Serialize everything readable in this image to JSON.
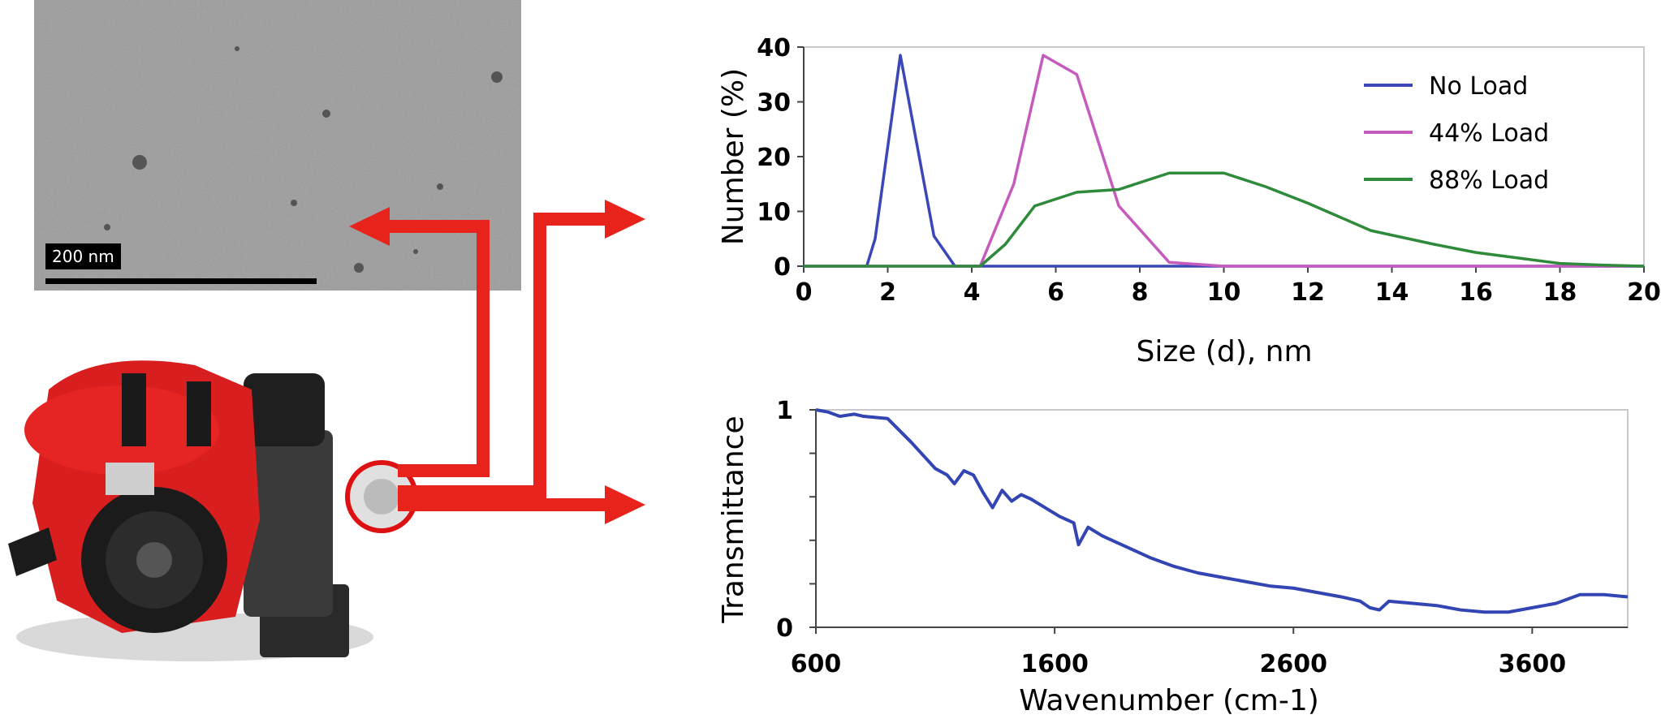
{
  "tem_image": {
    "scale_label": "200 nm"
  },
  "chart_data": [
    {
      "type": "line",
      "xlabel": "Size (d), nm",
      "ylabel": "Number (%)",
      "xlim": [
        0,
        20
      ],
      "ylim": [
        0,
        40
      ],
      "xticks": [
        "0",
        "2",
        "4",
        "6",
        "8",
        "10",
        "12",
        "14",
        "16",
        "18",
        "20"
      ],
      "yticks": [
        "0",
        "10",
        "20",
        "30",
        "40"
      ],
      "grid": false,
      "legend_position": "top-right",
      "series": [
        {
          "name": "No Load",
          "color": "#3b47b8",
          "x": [
            0,
            1.5,
            1.7,
            2.3,
            3.1,
            3.6,
            20
          ],
          "y": [
            0,
            0,
            5,
            38.5,
            5.5,
            0,
            0
          ]
        },
        {
          "name": "44% Load",
          "color": "#c45bbd",
          "x": [
            0,
            4.2,
            5.0,
            5.7,
            6.5,
            7.5,
            8.7,
            10,
            20
          ],
          "y": [
            0,
            0,
            15,
            38.5,
            35,
            11,
            0.7,
            0,
            0
          ]
        },
        {
          "name": "88% Load",
          "color": "#2f8a3c",
          "x": [
            0,
            4.2,
            4.8,
            5.5,
            6.5,
            7.5,
            8.7,
            10,
            11,
            12,
            13.5,
            15,
            16,
            17,
            18,
            19,
            20
          ],
          "y": [
            0,
            0,
            4,
            11,
            13.5,
            14,
            17,
            17,
            14.5,
            11.5,
            6.5,
            4,
            2.5,
            1.5,
            0.5,
            0.2,
            0
          ]
        }
      ]
    },
    {
      "type": "line",
      "xlabel": "Wavenumber (cm-1)",
      "ylabel": "Transmittance",
      "xlim": [
        600,
        4000
      ],
      "ylim": [
        0,
        1
      ],
      "xticks": [
        "600",
        "1600",
        "2600",
        "3600"
      ],
      "yticks": [
        "0",
        "1"
      ],
      "grid": false,
      "series": [
        {
          "name": "",
          "color": "#3344b3",
          "x": [
            600,
            650,
            700,
            760,
            800,
            900,
            1000,
            1100,
            1150,
            1180,
            1220,
            1260,
            1300,
            1340,
            1380,
            1420,
            1460,
            1500,
            1560,
            1620,
            1680,
            1700,
            1740,
            1800,
            1900,
            2000,
            2100,
            2200,
            2300,
            2400,
            2500,
            2600,
            2700,
            2800,
            2880,
            2920,
            2960,
            3000,
            3100,
            3200,
            3300,
            3400,
            3500,
            3600,
            3700,
            3800,
            3900,
            4000
          ],
          "y": [
            1.0,
            0.99,
            0.97,
            0.98,
            0.97,
            0.96,
            0.85,
            0.73,
            0.7,
            0.66,
            0.72,
            0.7,
            0.62,
            0.55,
            0.63,
            0.58,
            0.61,
            0.59,
            0.55,
            0.51,
            0.48,
            0.38,
            0.46,
            0.42,
            0.37,
            0.32,
            0.28,
            0.25,
            0.23,
            0.21,
            0.19,
            0.18,
            0.16,
            0.14,
            0.12,
            0.09,
            0.08,
            0.12,
            0.11,
            0.1,
            0.08,
            0.07,
            0.07,
            0.09,
            0.11,
            0.15,
            0.15,
            0.14
          ]
        }
      ]
    }
  ]
}
